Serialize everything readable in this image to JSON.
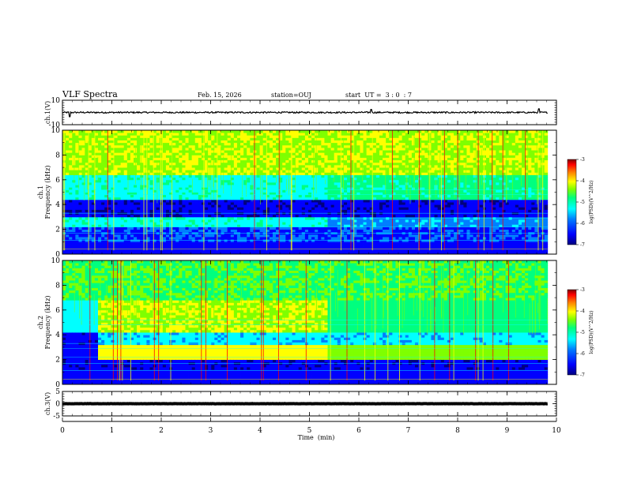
{
  "header": {
    "title": "VLF Spectra",
    "date": "Feb. 15, 2026",
    "station": "station=OUJ",
    "start_time": "start  UT =  3 : 0  : 7"
  },
  "colors": {
    "colormap": [
      "#00007f",
      "#0000ff",
      "#007fff",
      "#00ffff",
      "#00ff7f",
      "#7fff00",
      "#ffff00",
      "#ff7f00",
      "#ff0000",
      "#7f0000"
    ],
    "axis": "#000000",
    "background": "#ffffff"
  },
  "chart_data": [
    {
      "id": "ch1-waveform",
      "type": "line",
      "ylabel": "ch.1(V)",
      "ylim": [
        -10,
        10
      ],
      "yticks": [
        {
          "value": 10,
          "label": "10"
        },
        {
          "value": -10,
          "label": "-10"
        }
      ],
      "baseline": 0,
      "noise_amplitude": 0.6,
      "spikes": [
        {
          "t": 0.15,
          "v": -3.5
        },
        {
          "t": 6.25,
          "v": 2.5
        },
        {
          "t": 9.65,
          "v": 3.0
        }
      ]
    },
    {
      "id": "ch1-spectrogram",
      "type": "heatmap",
      "ylabel": [
        "ch.1",
        "Frequency  (kHz)"
      ],
      "ylim": [
        0,
        10
      ],
      "yticks": [
        {
          "value": 0,
          "label": "0"
        },
        {
          "value": 2,
          "label": "2"
        },
        {
          "value": 4,
          "label": "4"
        },
        {
          "value": 6,
          "label": "6"
        },
        {
          "value": 8,
          "label": "8"
        },
        {
          "value": 10,
          "label": "10"
        }
      ],
      "colorbar": {
        "label": "log(PSD)(V^2/Hz)",
        "range": [
          -7,
          -3
        ],
        "ticks": [
          {
            "value": -3,
            "label": "-3"
          },
          {
            "value": -4,
            "label": "-4"
          },
          {
            "value": -5,
            "label": "-5"
          },
          {
            "value": -6,
            "label": "-6"
          },
          {
            "value": -7,
            "label": "-7"
          }
        ]
      }
    },
    {
      "id": "ch2-spectrogram",
      "type": "heatmap",
      "ylabel": [
        "ch.2",
        "Frequency  (kHz)"
      ],
      "ylim": [
        0,
        10
      ],
      "yticks": [
        {
          "value": 0,
          "label": "0"
        },
        {
          "value": 2,
          "label": "2"
        },
        {
          "value": 4,
          "label": "4"
        },
        {
          "value": 6,
          "label": "6"
        },
        {
          "value": 8,
          "label": "8"
        },
        {
          "value": 10,
          "label": "10"
        }
      ],
      "colorbar": {
        "label": "log(PSD)(V^2/Hz)",
        "range": [
          -7,
          -3
        ],
        "ticks": [
          {
            "value": -3,
            "label": "-3"
          },
          {
            "value": -4,
            "label": "-4"
          },
          {
            "value": -5,
            "label": "-5"
          },
          {
            "value": -6,
            "label": "-6"
          },
          {
            "value": -7,
            "label": "-7"
          }
        ]
      }
    },
    {
      "id": "ch3-waveform",
      "type": "line",
      "ylabel": "ch.3(V)",
      "ylim": [
        -5,
        5
      ],
      "yticks": [
        {
          "value": 5,
          "label": "5"
        },
        {
          "value": 0,
          "label": "0"
        },
        {
          "value": -5,
          "label": "-5"
        }
      ],
      "baseline": 0,
      "noise_amplitude": 0.05,
      "spikes": []
    }
  ],
  "x_axis": {
    "label": "Time  (min)",
    "range": [
      0,
      10
    ],
    "data_end": 9.82,
    "ticks": [
      {
        "value": 0,
        "label": "0"
      },
      {
        "value": 1,
        "label": "1"
      },
      {
        "value": 2,
        "label": "2"
      },
      {
        "value": 3,
        "label": "3"
      },
      {
        "value": 4,
        "label": "4"
      },
      {
        "value": 5,
        "label": "5"
      },
      {
        "value": 6,
        "label": "6"
      },
      {
        "value": 7,
        "label": "7"
      },
      {
        "value": 8,
        "label": "8"
      },
      {
        "value": 9,
        "label": "9"
      },
      {
        "value": 10,
        "label": "10"
      }
    ]
  }
}
